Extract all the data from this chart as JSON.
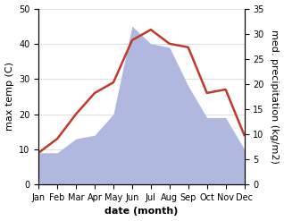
{
  "months": [
    "Jan",
    "Feb",
    "Mar",
    "Apr",
    "May",
    "Jun",
    "Jul",
    "Aug",
    "Sep",
    "Oct",
    "Nov",
    "Dec"
  ],
  "temp": [
    9,
    13,
    20,
    26,
    29,
    41,
    44,
    40,
    39,
    26,
    27,
    14
  ],
  "precip": [
    9,
    9,
    13,
    14,
    20,
    45,
    40,
    39,
    28,
    19,
    19,
    10
  ],
  "temp_ylim": [
    0,
    50
  ],
  "precip_ylim": [
    0,
    35
  ],
  "temp_color": "#c0392b",
  "precip_fill_color": "#b0b8e0",
  "xlabel": "date (month)",
  "ylabel_left": "max temp (C)",
  "ylabel_right": "med. precipitation (kg/m2)",
  "tick_fontsize": 7,
  "label_fontsize": 8,
  "ylabel_fontsize": 8
}
